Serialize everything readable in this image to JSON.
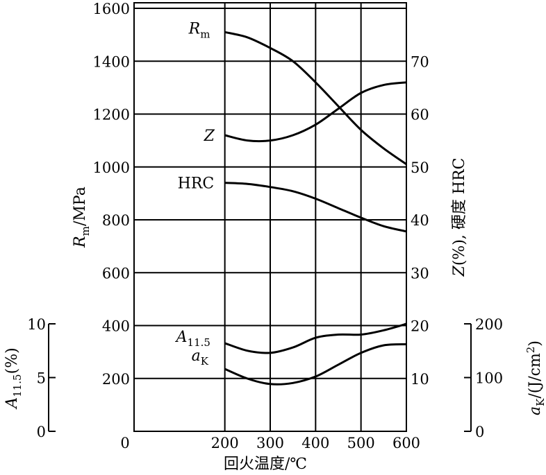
{
  "chart_data": {
    "type": "line",
    "x": [
      200,
      250,
      300,
      350,
      400,
      450,
      500,
      550,
      600
    ],
    "xlim": [
      0,
      600
    ],
    "xticks": [
      0,
      200,
      300,
      400,
      500,
      600
    ],
    "xlabel": "回火温度/℃",
    "axes": {
      "left_main": {
        "label_symbol": "R",
        "label_sub": "m",
        "label_rest": "/MPa",
        "lim": [
          200,
          1600
        ],
        "ticks": [
          200,
          400,
          600,
          800,
          1000,
          1200,
          1400,
          1600
        ]
      },
      "right_main": {
        "label_symbol": "Z",
        "label_rest": "(%), 硬度  HRC",
        "lim": [
          10,
          80
        ],
        "ticks": [
          10,
          20,
          30,
          40,
          50,
          60,
          70
        ]
      },
      "left_sub": {
        "label_symbol": "A",
        "label_sub": "11.5",
        "label_rest": "(%)",
        "lim": [
          0,
          10
        ],
        "ticks": [
          0,
          5,
          10
        ]
      },
      "right_sub": {
        "label_symbol": "a",
        "label_sub": "K",
        "label_rest": "/(J/cm",
        "label_sup": "2",
        "label_end": ")",
        "lim": [
          0,
          200
        ],
        "ticks": [
          0,
          100,
          200
        ]
      },
      "origin_label": "0"
    },
    "series": [
      {
        "name": "Rm",
        "label_symbol": "R",
        "label_sub": "m",
        "axis": "left_main",
        "values": [
          1510,
          1490,
          1450,
          1400,
          1320,
          1230,
          1140,
          1070,
          1010
        ]
      },
      {
        "name": "Z",
        "label_symbol": "Z",
        "label_sub": "",
        "axis": "right_main",
        "values": [
          56,
          55,
          55,
          56,
          58,
          61,
          64,
          65.5,
          66
        ]
      },
      {
        "name": "HRC",
        "label_symbol": "HRC",
        "label_sub": "",
        "axis": "right_main",
        "upright": true,
        "values": [
          47,
          46.8,
          46.2,
          45.4,
          44,
          42.2,
          40.4,
          38.8,
          37.8
        ]
      },
      {
        "name": "A11.5",
        "label_symbol": "A",
        "label_sub": "11.5",
        "axis": "left_sub",
        "values": [
          8.2,
          7.5,
          7.3,
          7.8,
          8.7,
          9.0,
          9.0,
          9.4,
          10.0
        ]
      },
      {
        "name": "aK",
        "label_symbol": "a",
        "label_sub": "K",
        "axis": "right_sub",
        "values": [
          116,
          98,
          88,
          90,
          102,
          124,
          146,
          160,
          162
        ]
      }
    ]
  }
}
